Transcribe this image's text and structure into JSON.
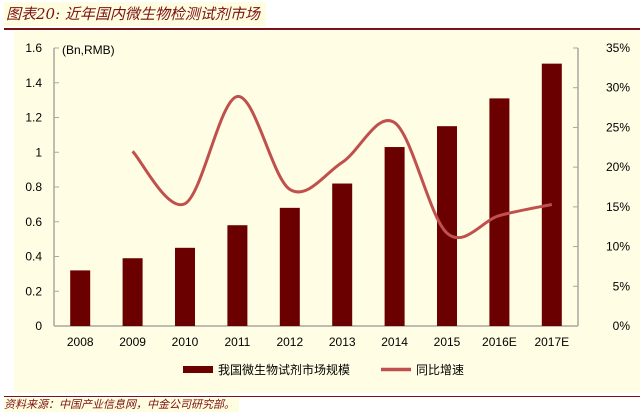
{
  "title": "图表20: 近年国内微生物检测试剂市场",
  "source": "资料来源：中国产业信息网，中金公司研究部。",
  "chart_data": {
    "type": "bar",
    "title": "图表20: 近年国内微生物检测试剂市场",
    "unit_label": "(Bn,RMB)",
    "categories": [
      "2008",
      "2009",
      "2010",
      "2011",
      "2012",
      "2013",
      "2014",
      "2015",
      "2016E",
      "2017E"
    ],
    "series": [
      {
        "name": "我国微生物试剂市场规模",
        "type": "bar",
        "axis": "left",
        "color": "#6b0000",
        "values": [
          0.32,
          0.39,
          0.45,
          0.58,
          0.68,
          0.82,
          1.03,
          1.15,
          1.31,
          1.51
        ]
      },
      {
        "name": "同比增速",
        "type": "line",
        "axis": "right",
        "color": "#c0504d",
        "values": [
          null,
          22.0,
          15.4,
          28.9,
          17.2,
          20.6,
          25.6,
          11.7,
          13.9,
          15.3
        ]
      }
    ],
    "ylim": [
      0,
      1.6
    ],
    "yticks": [
      "0",
      "0.2",
      "0.4",
      "0.6",
      "0.8",
      "1",
      "1.2",
      "1.4",
      "1.6"
    ],
    "y2lim": [
      0,
      35
    ],
    "y2ticks": [
      "0%",
      "5%",
      "10%",
      "15%",
      "20%",
      "25%",
      "30%",
      "35%"
    ],
    "grid": false,
    "legend": "bottom"
  }
}
